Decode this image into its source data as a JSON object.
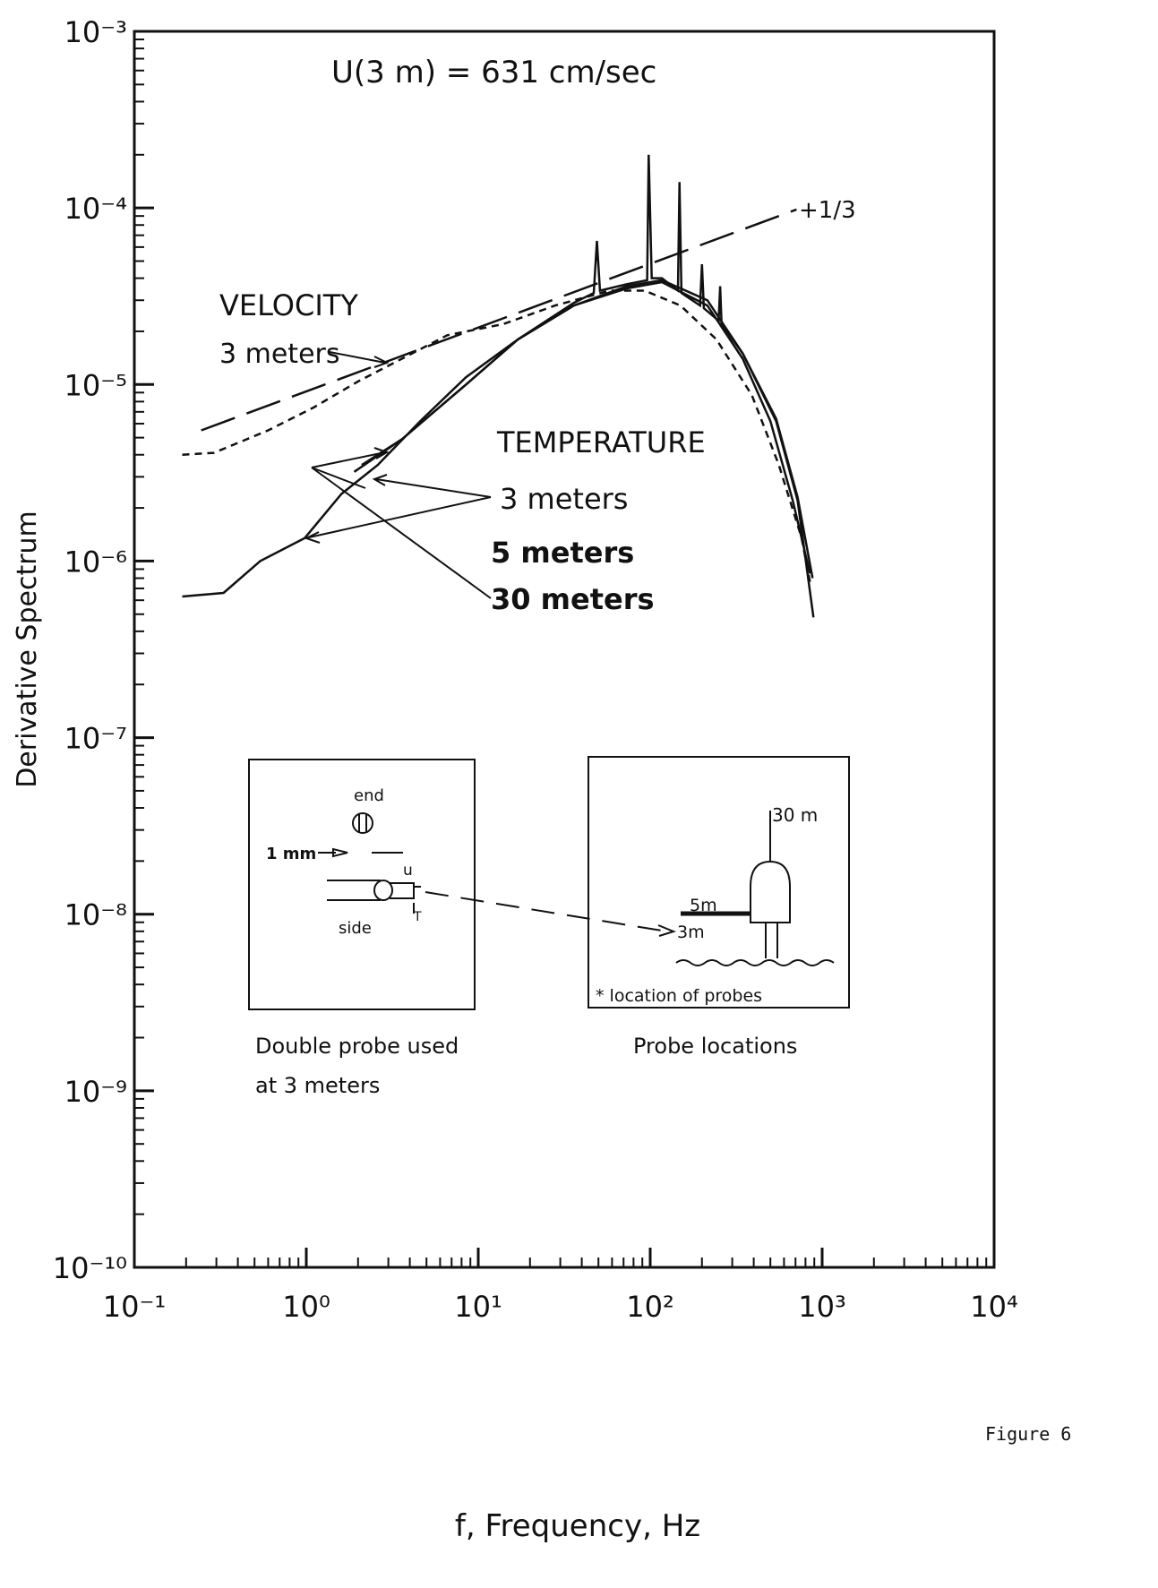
{
  "chart_data": {
    "type": "line",
    "title": "U(3 m) = 631 cm/sec",
    "xlabel": "f, Frequency, Hz",
    "ylabel": "Derivative Spectrum",
    "figure_label": "Figure 6",
    "xscale": "log",
    "yscale": "log",
    "xlim": [
      0.1,
      10000
    ],
    "ylim": [
      1e-10,
      0.001
    ],
    "xticks": [
      {
        "value": 0.1,
        "label": "10⁻¹"
      },
      {
        "value": 1,
        "label": "10⁰"
      },
      {
        "value": 10,
        "label": "10¹"
      },
      {
        "value": 100,
        "label": "10²"
      },
      {
        "value": 1000,
        "label": "10³"
      },
      {
        "value": 10000,
        "label": "10⁴"
      }
    ],
    "yticks": [
      {
        "value": 1e-10,
        "label": "10⁻¹⁰"
      },
      {
        "value": 1e-09,
        "label": "10⁻⁹"
      },
      {
        "value": 1e-08,
        "label": "10⁻⁸"
      },
      {
        "value": 1e-07,
        "label": "10⁻⁷"
      },
      {
        "value": 1e-06,
        "label": "10⁻⁶"
      },
      {
        "value": 1e-05,
        "label": "10⁻⁵"
      },
      {
        "value": 0.0001,
        "label": "10⁻⁴"
      },
      {
        "value": 0.001,
        "label": "10⁻³"
      }
    ],
    "series": [
      {
        "name": "VELOCITY 3 meters",
        "color": "#111111",
        "dash": "short",
        "x": [
          0.19,
          0.29,
          0.6,
          1.1,
          2,
          3.6,
          6.6,
          14,
          28,
          58,
          93,
          150,
          243,
          390,
          560,
          760,
          850
        ],
        "values": [
          4e-06,
          4.1e-06,
          5.5e-06,
          7.4e-06,
          1.04e-05,
          1.4e-05,
          1.9e-05,
          2.2e-05,
          2.8e-05,
          3.4e-05,
          3.4e-05,
          2.8e-05,
          1.8e-05,
          8.7e-06,
          3.5e-06,
          1.35e-06,
          7.6e-07
        ]
      },
      {
        "name": "TEMPERATURE 3 meters",
        "color": "#111111",
        "dash": "solid",
        "x": [
          2.1,
          3.6,
          8.5,
          17,
          36,
          47,
          49,
          51,
          73,
          96,
          98,
          102,
          117,
          145,
          148,
          152,
          195,
          200,
          205,
          250,
          255,
          260,
          345,
          540,
          720,
          880
        ],
        "values": [
          3.5e-06,
          4.9e-06,
          1e-05,
          1.8e-05,
          2.9e-05,
          3.3e-05,
          6.5e-05,
          3.4e-05,
          3.7e-05,
          3.9e-05,
          0.0002,
          4e-05,
          4e-05,
          3.4e-05,
          0.00014,
          3.3e-05,
          2.8e-05,
          4.8e-05,
          2.7e-05,
          2.3e-05,
          3.6e-05,
          2.2e-05,
          1.5e-05,
          6.4e-06,
          2.3e-06,
          8e-07
        ]
      },
      {
        "name": "TEMPERATURE 5 meters",
        "color": "#111111",
        "dash": "solid",
        "x": [
          1.9,
          3.6,
          8.5,
          17,
          36,
          73,
          117,
          215,
          345,
          540,
          720,
          890
        ],
        "values": [
          3.2e-06,
          4.9e-06,
          1e-05,
          1.8e-05,
          2.8e-05,
          3.6e-05,
          3.9e-05,
          3e-05,
          1.5e-05,
          6.2e-06,
          2.2e-06,
          4.8e-07
        ]
      },
      {
        "name": "TEMPERATURE 30 meters",
        "color": "#111111",
        "dash": "solid",
        "x": [
          0.19,
          0.33,
          0.54,
          0.98,
          1.6,
          2.6,
          4.6,
          8.5,
          17,
          36,
          73,
          117,
          215,
          345,
          500,
          675,
          850
        ],
        "values": [
          6.3e-07,
          6.6e-07,
          1e-06,
          1.35e-06,
          2.4e-06,
          3.5e-06,
          6.2e-06,
          1.1e-05,
          1.8e-05,
          2.8e-05,
          3.5e-05,
          3.8e-05,
          2.8e-05,
          1.4e-05,
          6.2e-06,
          2.2e-06,
          8.5e-07
        ]
      },
      {
        "name": "+1/3",
        "color": "#111111",
        "dash": "long",
        "x": [
          0.245,
          710
        ],
        "values": [
          5.5e-06,
          9.8e-05
        ]
      }
    ],
    "annotations": {
      "velocity": "VELOCITY",
      "velocity_3m": "3 meters",
      "temperature": "TEMPERATURE",
      "temp_3m": "3 meters",
      "temp_5m": "5 meters",
      "temp_30m": "30 meters",
      "slope": "+1/3"
    },
    "insets": {
      "probe": {
        "end": "end",
        "mm": "1 mm",
        "u": "u",
        "t": "T",
        "side": "side",
        "caption_1": "Double probe used",
        "caption_2": "at  3  meters"
      },
      "locations": {
        "h30": "30 m",
        "h5": "5m",
        "h3": "3m",
        "legend": "* location  of  probes",
        "caption": "Probe   locations"
      }
    }
  }
}
